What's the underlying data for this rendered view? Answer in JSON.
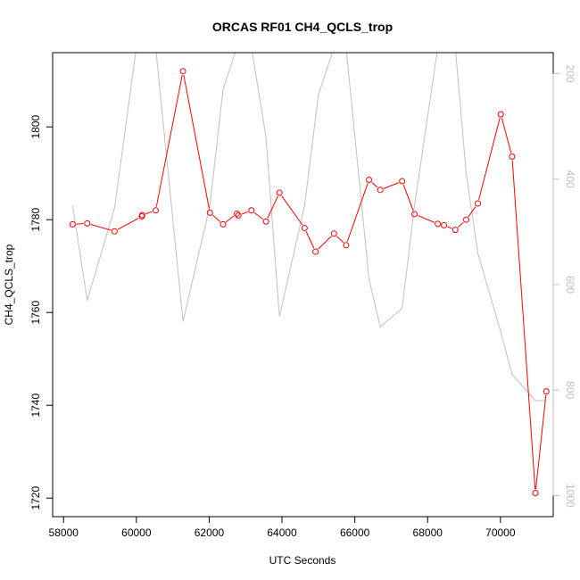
{
  "chart_data": {
    "type": "line",
    "title": "ORCAS RF01 CH4_QCLS_trop",
    "xlabel": "UTC Seconds",
    "ylabel": "CH4_QCLS_trop",
    "xlim": [
      57700,
      71450
    ],
    "ylim": [
      1716,
      1816
    ],
    "y2lim": [
      1040,
      160
    ],
    "y2_inverted": true,
    "x_ticks": [
      58000,
      60000,
      62000,
      64000,
      66000,
      68000,
      70000
    ],
    "y_ticks": [
      1720,
      1740,
      1760,
      1780,
      1800
    ],
    "y2_ticks": [
      200,
      400,
      600,
      800,
      1000
    ],
    "series": [
      {
        "color": "#ff0000",
        "marker": "open-circle",
        "axis": "left",
        "x": [
          58250,
          58650,
          59400,
          60150,
          60160,
          60530,
          61280,
          62020,
          62380,
          62760,
          62800,
          63160,
          63560,
          63930,
          64620,
          64920,
          65430,
          65760,
          66390,
          66700,
          67300,
          67640,
          68280,
          68450,
          68760,
          69060,
          69380,
          70010,
          70320,
          70960,
          71260
        ],
        "y": [
          1779,
          1779.2,
          1777.5,
          1780.7,
          1781,
          1782,
          1812,
          1781.5,
          1779,
          1781.3,
          1780.9,
          1782,
          1779.6,
          1785.8,
          1778.2,
          1773.1,
          1777,
          1774.5,
          1788.6,
          1786.4,
          1788.3,
          1781.2,
          1779.1,
          1778.8,
          1777.8,
          1780,
          1783.5,
          1802.7,
          1793.6,
          1721.1,
          1743
        ]
      },
      {
        "color": "#c0c0c0",
        "axis": "right",
        "x": [
          58250,
          58650,
          59400,
          60000,
          60530,
          61280,
          62020,
          62380,
          62760,
          63160,
          63560,
          63930,
          64620,
          65000,
          65430,
          65760,
          66390,
          66700,
          67300,
          67640,
          68280,
          68760,
          69060,
          69380,
          70010,
          70320,
          70960,
          71260
        ],
        "y": [
          450,
          630,
          455,
          150,
          150,
          670,
          450,
          230,
          150,
          150,
          320,
          660,
          450,
          240,
          150,
          150,
          590,
          680,
          645,
          450,
          150,
          150,
          390,
          540,
          690,
          770,
          820,
          820
        ]
      }
    ]
  }
}
